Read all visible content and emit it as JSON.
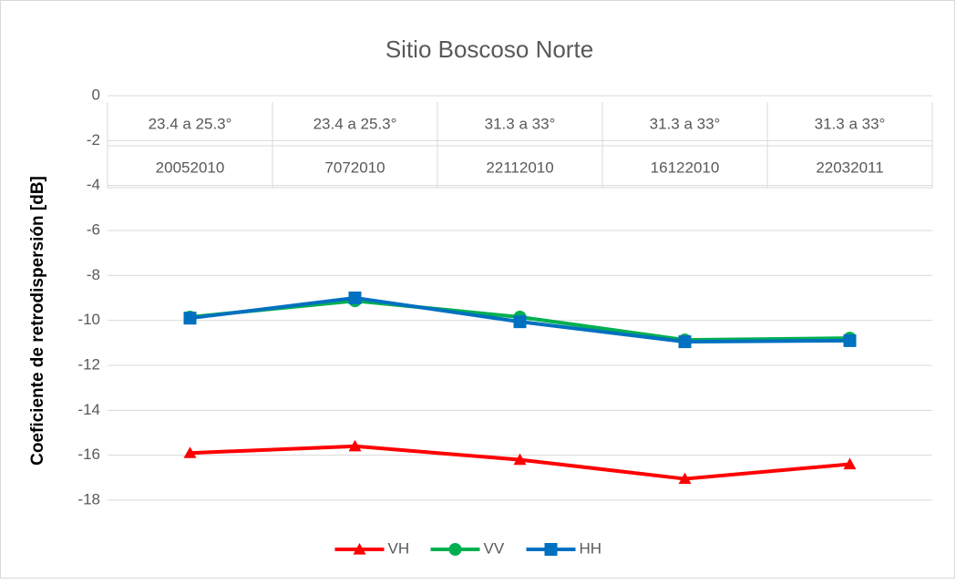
{
  "chart_data": {
    "type": "line",
    "title": "Sitio Boscoso Norte",
    "y_label": "Coeficiente de retrodispersión [dB]",
    "categories": [
      "20052010",
      "7072010",
      "22112010",
      "16122010",
      "22032011"
    ],
    "category_angles": [
      "23.4 a 25.3°",
      "23.4 a 25.3°",
      "31.3 a 33°",
      "31.3 a 33°",
      "31.3 a 33°"
    ],
    "series": [
      {
        "name": "VH",
        "color": "#ff0000",
        "marker": "triangle",
        "values": [
          -15.9,
          -15.6,
          -16.2,
          -17.05,
          -16.4
        ]
      },
      {
        "name": "VV",
        "color": "#00b050",
        "marker": "circle",
        "values": [
          -9.85,
          -9.13,
          -9.85,
          -10.87,
          -10.79
        ]
      },
      {
        "name": "HH",
        "color": "#0070c0",
        "marker": "square",
        "values": [
          -9.9,
          -9.0,
          -10.06,
          -10.95,
          -10.9
        ]
      }
    ],
    "ylim": [
      -18,
      0
    ],
    "yticks": [
      0,
      -2,
      -4,
      -6,
      -8,
      -10,
      -12,
      -14,
      -16,
      -18
    ],
    "grid": true,
    "legend": "bottom"
  }
}
